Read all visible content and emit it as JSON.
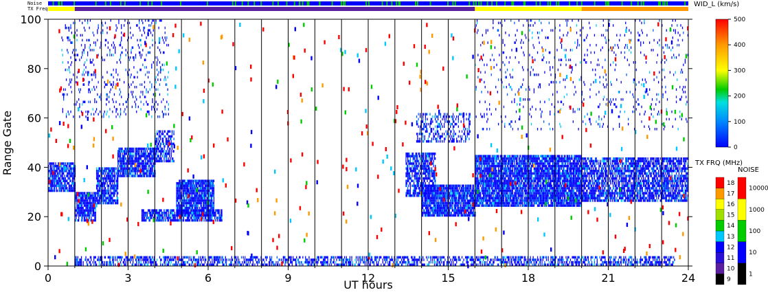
{
  "chart_data": {
    "type": "heatmap",
    "xlabel": "UT hours",
    "ylabel": "Range Gate",
    "xlim": [
      0,
      24
    ],
    "ylim": [
      0,
      100
    ],
    "x_ticks": [
      "0",
      "3",
      "6",
      "9",
      "12",
      "15",
      "18",
      "21",
      "24"
    ],
    "y_ticks": [
      "0",
      "20",
      "40",
      "60",
      "80",
      "100"
    ],
    "hour_gridlines": [
      1,
      2,
      3,
      4,
      5,
      6,
      7,
      8,
      9,
      10,
      11,
      12,
      13,
      14,
      15,
      16,
      17,
      18,
      19,
      20,
      21,
      22,
      23
    ],
    "noise_bar_label": "Noise",
    "txfreq_bar_label": "TX Freq",
    "txfreq_segments": [
      {
        "from": 0,
        "to": 1,
        "color": "#ffff00"
      },
      {
        "from": 1,
        "to": 16,
        "color": "#5a1fa0"
      },
      {
        "from": 16,
        "to": 20,
        "color": "#ffff00"
      },
      {
        "from": 20,
        "to": 24,
        "color": "#ff9900"
      }
    ],
    "echo_bands": [
      {
        "t0": 0.0,
        "t1": 1.0,
        "g0": 30,
        "g1": 42,
        "density": 0.8
      },
      {
        "t0": 1.0,
        "t1": 1.8,
        "g0": 18,
        "g1": 30,
        "density": 0.85
      },
      {
        "t0": 1.8,
        "t1": 2.6,
        "g0": 25,
        "g1": 40,
        "density": 0.8
      },
      {
        "t0": 2.6,
        "t1": 4.0,
        "g0": 36,
        "g1": 48,
        "density": 0.85
      },
      {
        "t0": 4.0,
        "t1": 4.7,
        "g0": 42,
        "g1": 55,
        "density": 0.6
      },
      {
        "t0": 3.5,
        "t1": 6.5,
        "g0": 18,
        "g1": 23,
        "density": 0.75
      },
      {
        "t0": 4.8,
        "t1": 6.2,
        "g0": 20,
        "g1": 35,
        "density": 0.9
      },
      {
        "t0": 13.4,
        "t1": 14.5,
        "g0": 28,
        "g1": 46,
        "density": 0.7
      },
      {
        "t0": 14.0,
        "t1": 16.0,
        "g0": 20,
        "g1": 33,
        "density": 0.9
      },
      {
        "t0": 16.0,
        "t1": 20.0,
        "g0": 24,
        "g1": 45,
        "density": 0.9
      },
      {
        "t0": 20.0,
        "t1": 24.0,
        "g0": 26,
        "g1": 44,
        "density": 0.75
      },
      {
        "t0": 0.5,
        "t1": 4.5,
        "g0": 60,
        "g1": 100,
        "density": 0.12
      },
      {
        "t0": 13.8,
        "t1": 15.8,
        "g0": 50,
        "g1": 62,
        "density": 0.35
      },
      {
        "t0": 16.0,
        "t1": 24.0,
        "g0": 55,
        "g1": 100,
        "density": 0.06
      },
      {
        "t0": 1.0,
        "t1": 23.5,
        "g0": 0,
        "g1": 4,
        "density": 0.55
      }
    ],
    "width_colorbar": {
      "title": "WID_L (km/s)",
      "min": 0,
      "max": 500,
      "ticks": [
        "0",
        "100",
        "200",
        "300",
        "400",
        "500"
      ]
    },
    "txfreq_colorbar": {
      "title": "TX FRQ (MHz)",
      "ticks": [
        "9",
        "10",
        "11",
        "12",
        "13",
        "14",
        "15",
        "16",
        "17",
        "18"
      ],
      "colors": [
        "#000000",
        "#5a1fa0",
        "#2a0fd8",
        "#0000ff",
        "#00c8ff",
        "#00cc00",
        "#a0e000",
        "#ffff00",
        "#ff9900",
        "#ff0000"
      ]
    },
    "noise_colorbar": {
      "title": "NOISE",
      "ticks": [
        "1",
        "10",
        "100",
        "1000",
        "10000"
      ],
      "colors": [
        "#000000",
        "#0000ff",
        "#00cc00",
        "#ffff00",
        "#ff0000"
      ]
    }
  }
}
